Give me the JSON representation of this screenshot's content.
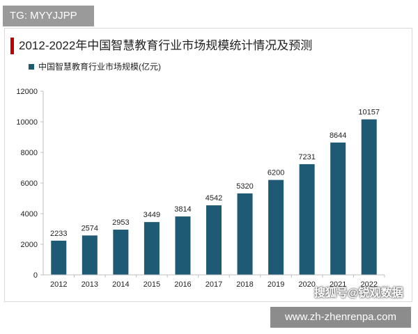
{
  "badge": {
    "text": "TG: MYYJJPP"
  },
  "watermarks": {
    "sohu": "搜狐号@锐观数据",
    "url": "www.zh-zhenrenpa.com"
  },
  "colors": {
    "bar": "#1f5a74",
    "accent": "#c00000",
    "axis": "#bfbfbf"
  },
  "chart_data": {
    "type": "bar",
    "title": "2012-2022年中国智慧教育行业市场规模统计情况及预测",
    "categories": [
      "2012",
      "2013",
      "2014",
      "2015",
      "2016",
      "2017",
      "2018",
      "2019",
      "2020",
      "2021",
      "2022"
    ],
    "series": [
      {
        "name": "中国智慧教育行业市场规模(亿元)",
        "values": [
          2233,
          2574,
          2953,
          3449,
          3814,
          4542,
          5320,
          6200,
          7231,
          8644,
          10157
        ]
      }
    ],
    "ylim": [
      0,
      12000
    ],
    "yticks": [
      0,
      2000,
      4000,
      6000,
      8000,
      10000,
      12000
    ],
    "grid": false,
    "legend": "top-left"
  }
}
